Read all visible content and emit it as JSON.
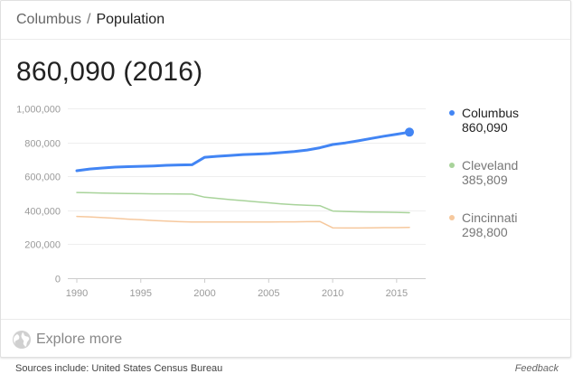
{
  "breadcrumb": {
    "parent": "Columbus",
    "separator": "/",
    "current": "Population"
  },
  "headline": "860,090 (2016)",
  "chart_data": {
    "type": "line",
    "x": [
      1990,
      1991,
      1992,
      1993,
      1994,
      1995,
      1996,
      1997,
      1998,
      1999,
      2000,
      2001,
      2002,
      2003,
      2004,
      2005,
      2006,
      2007,
      2008,
      2009,
      2010,
      2011,
      2012,
      2013,
      2014,
      2015,
      2016
    ],
    "series": [
      {
        "name": "Columbus",
        "color": "#4285f4",
        "latest_label": "860,090",
        "values": [
          633000,
          643000,
          649000,
          654000,
          657000,
          659000,
          661000,
          665000,
          667000,
          668000,
          712000,
          718000,
          723000,
          728000,
          731000,
          734000,
          740000,
          746000,
          755000,
          768000,
          787000,
          797000,
          809000,
          823000,
          836000,
          848000,
          860090
        ]
      },
      {
        "name": "Cleveland",
        "color": "#a8d39a",
        "latest_label": "385,809",
        "values": [
          505000,
          503000,
          501000,
          500000,
          499000,
          498000,
          497000,
          497000,
          496000,
          495000,
          477000,
          470000,
          463000,
          457000,
          450000,
          444000,
          438000,
          433000,
          430000,
          427000,
          396000,
          393000,
          391000,
          390000,
          389000,
          388000,
          385809
        ]
      },
      {
        "name": "Cincinnati",
        "color": "#f6c89d",
        "latest_label": "298,800",
        "values": [
          364000,
          361000,
          357000,
          353000,
          348000,
          344000,
          340000,
          336000,
          333000,
          331000,
          331000,
          331000,
          331000,
          331000,
          331000,
          331000,
          332000,
          332000,
          333000,
          334000,
          297000,
          296000,
          296000,
          297000,
          298000,
          298000,
          298800
        ]
      }
    ],
    "y_ticks": [
      0,
      200000,
      400000,
      600000,
      800000,
      1000000
    ],
    "y_tick_labels": [
      "0",
      "200,000",
      "400,000",
      "600,000",
      "800,000",
      "1,000,000"
    ],
    "x_ticks": [
      1990,
      1995,
      2000,
      2005,
      2010,
      2015
    ],
    "x_tick_labels": [
      "1990",
      "1995",
      "2000",
      "2005",
      "2010",
      "2015"
    ],
    "xlim": [
      1990,
      2016
    ],
    "ylim": [
      0,
      1000000
    ],
    "grid": true,
    "legend_position": "right",
    "title": "",
    "xlabel": "",
    "ylabel": ""
  },
  "explore": {
    "label": "Explore more",
    "icon": "globe-icon"
  },
  "footer": {
    "sources": "Sources include: United States Census Bureau",
    "feedback": "Feedback"
  }
}
